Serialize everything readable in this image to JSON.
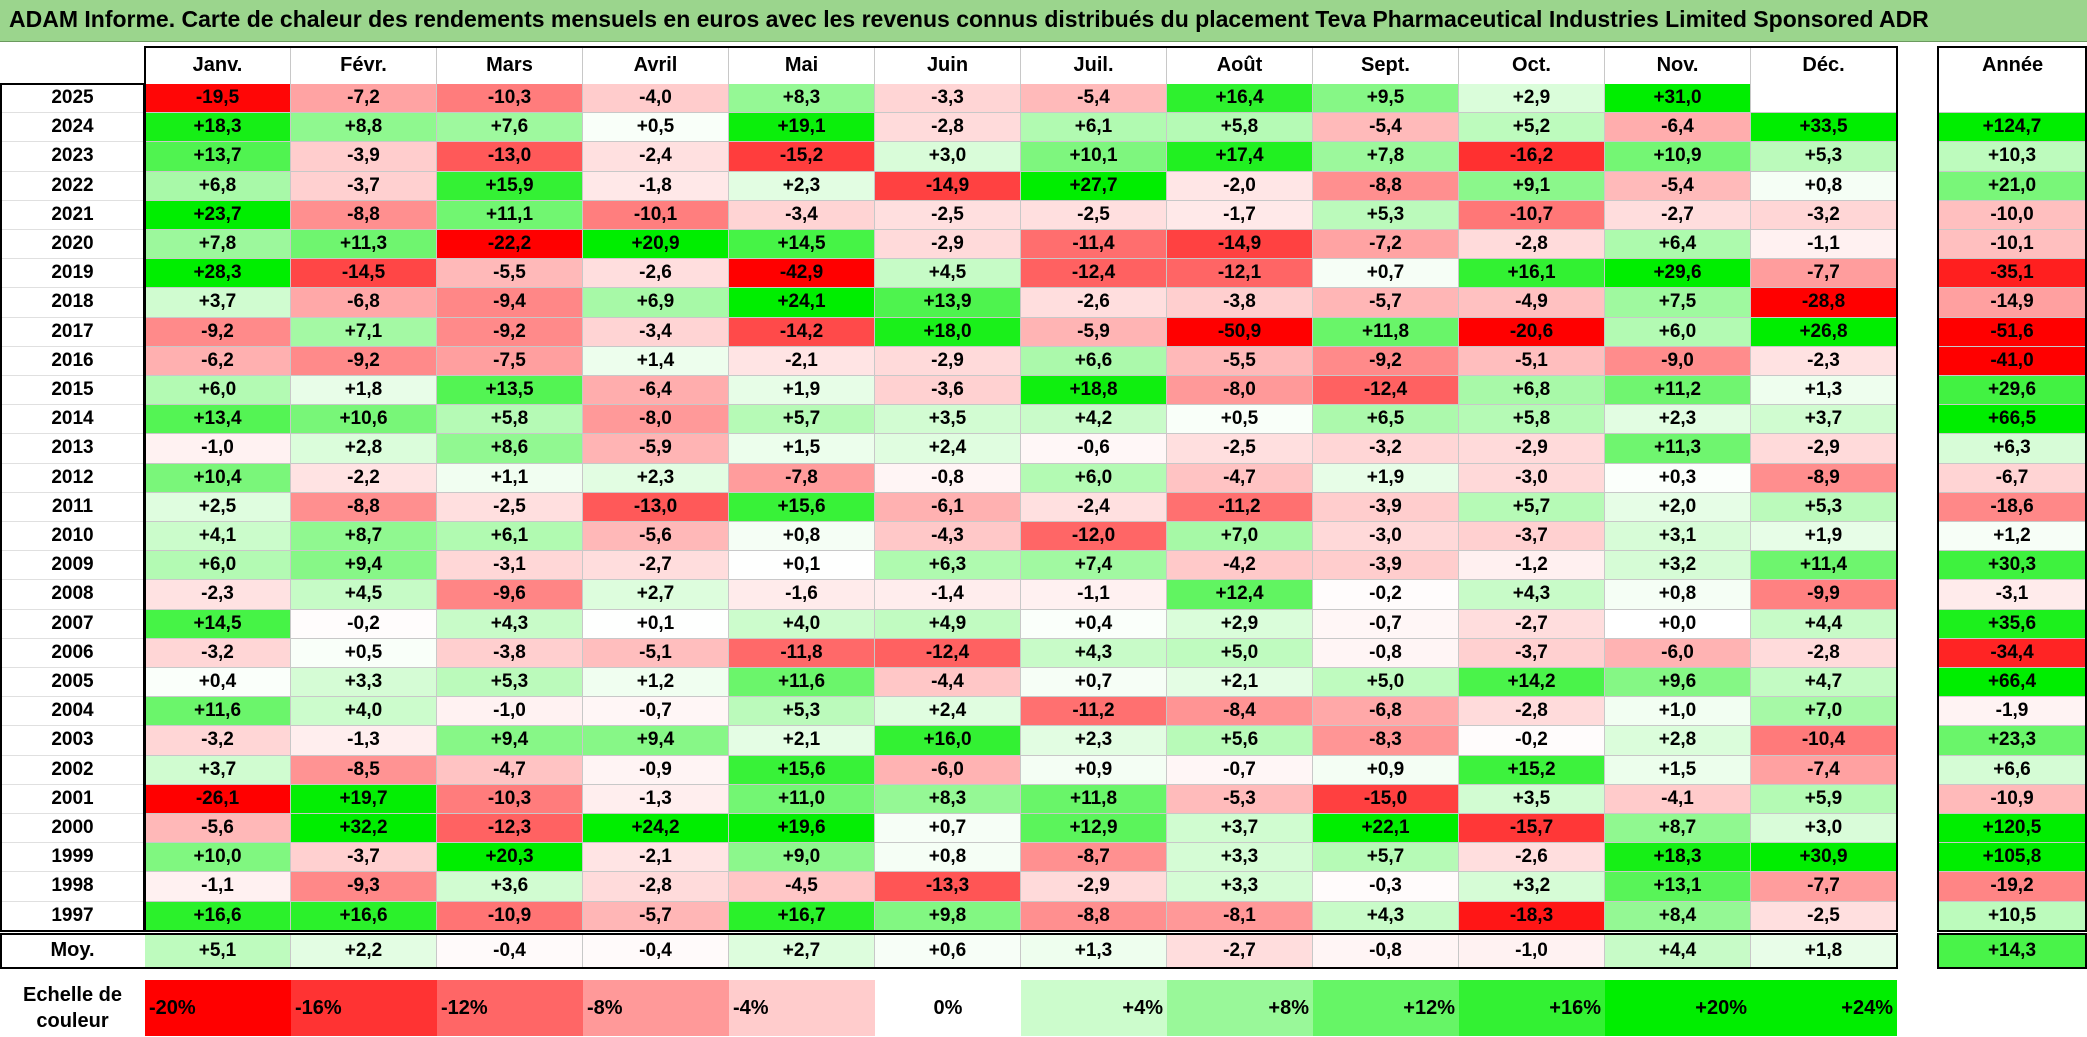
{
  "title": "ADAM Informe. Carte de chaleur des rendements mensuels en euros avec les revenus connus distribués du placement Teva Pharmaceutical Industries Limited Sponsored ADR",
  "chart_data": {
    "type": "heatmap",
    "months": [
      "Janv.",
      "Févr.",
      "Mars",
      "Avril",
      "Mai",
      "Juin",
      "Juil.",
      "Août",
      "Sept.",
      "Oct.",
      "Nov.",
      "Déc."
    ],
    "annual_header": "Année",
    "average_label": "Moy.",
    "rows": [
      {
        "year": "2025",
        "values": [
          "-19,5",
          "-7,2",
          "-10,3",
          "-4,0",
          "+8,3",
          "-3,3",
          "-5,4",
          "+16,4",
          "+9,5",
          "+2,9",
          "+31,0",
          ""
        ],
        "annual": ""
      },
      {
        "year": "2024",
        "values": [
          "+18,3",
          "+8,8",
          "+7,6",
          "+0,5",
          "+19,1",
          "-2,8",
          "+6,1",
          "+5,8",
          "-5,4",
          "+5,2",
          "-6,4",
          "+33,5"
        ],
        "annual": "+124,7"
      },
      {
        "year": "2023",
        "values": [
          "+13,7",
          "-3,9",
          "-13,0",
          "-2,4",
          "-15,2",
          "+3,0",
          "+10,1",
          "+17,4",
          "+7,8",
          "-16,2",
          "+10,9",
          "+5,3"
        ],
        "annual": "+10,3"
      },
      {
        "year": "2022",
        "values": [
          "+6,8",
          "-3,7",
          "+15,9",
          "-1,8",
          "+2,3",
          "-14,9",
          "+27,7",
          "-2,0",
          "-8,8",
          "+9,1",
          "-5,4",
          "+0,8"
        ],
        "annual": "+21,0"
      },
      {
        "year": "2021",
        "values": [
          "+23,7",
          "-8,8",
          "+11,1",
          "-10,1",
          "-3,4",
          "-2,5",
          "-2,5",
          "-1,7",
          "+5,3",
          "-10,7",
          "-2,7",
          "-3,2"
        ],
        "annual": "-10,0"
      },
      {
        "year": "2020",
        "values": [
          "+7,8",
          "+11,3",
          "-22,2",
          "+20,9",
          "+14,5",
          "-2,9",
          "-11,4",
          "-14,9",
          "-7,2",
          "-2,8",
          "+6,4",
          "-1,1"
        ],
        "annual": "-10,1"
      },
      {
        "year": "2019",
        "values": [
          "+28,3",
          "-14,5",
          "-5,5",
          "-2,6",
          "-42,9",
          "+4,5",
          "-12,4",
          "-12,1",
          "+0,7",
          "+16,1",
          "+29,6",
          "-7,7"
        ],
        "annual": "-35,1"
      },
      {
        "year": "2018",
        "values": [
          "+3,7",
          "-6,8",
          "-9,4",
          "+6,9",
          "+24,1",
          "+13,9",
          "-2,6",
          "-3,8",
          "-5,7",
          "-4,9",
          "+7,5",
          "-28,8"
        ],
        "annual": "-14,9"
      },
      {
        "year": "2017",
        "values": [
          "-9,2",
          "+7,1",
          "-9,2",
          "-3,4",
          "-14,2",
          "+18,0",
          "-5,9",
          "-50,9",
          "+11,8",
          "-20,6",
          "+6,0",
          "+26,8"
        ],
        "annual": "-51,6"
      },
      {
        "year": "2016",
        "values": [
          "-6,2",
          "-9,2",
          "-7,5",
          "+1,4",
          "-2,1",
          "-2,9",
          "+6,6",
          "-5,5",
          "-9,2",
          "-5,1",
          "-9,0",
          "-2,3"
        ],
        "annual": "-41,0"
      },
      {
        "year": "2015",
        "values": [
          "+6,0",
          "+1,8",
          "+13,5",
          "-6,4",
          "+1,9",
          "-3,6",
          "+18,8",
          "-8,0",
          "-12,4",
          "+6,8",
          "+11,2",
          "+1,3"
        ],
        "annual": "+29,6"
      },
      {
        "year": "2014",
        "values": [
          "+13,4",
          "+10,6",
          "+5,8",
          "-8,0",
          "+5,7",
          "+3,5",
          "+4,2",
          "+0,5",
          "+6,5",
          "+5,8",
          "+2,3",
          "+3,7"
        ],
        "annual": "+66,5"
      },
      {
        "year": "2013",
        "values": [
          "-1,0",
          "+2,8",
          "+8,6",
          "-5,9",
          "+1,5",
          "+2,4",
          "-0,6",
          "-2,5",
          "-3,2",
          "-2,9",
          "+11,3",
          "-2,9"
        ],
        "annual": "+6,3"
      },
      {
        "year": "2012",
        "values": [
          "+10,4",
          "-2,2",
          "+1,1",
          "+2,3",
          "-7,8",
          "-0,8",
          "+6,0",
          "-4,7",
          "+1,9",
          "-3,0",
          "+0,3",
          "-8,9"
        ],
        "annual": "-6,7"
      },
      {
        "year": "2011",
        "values": [
          "+2,5",
          "-8,8",
          "-2,5",
          "-13,0",
          "+15,6",
          "-6,1",
          "-2,4",
          "-11,2",
          "-3,9",
          "+5,7",
          "+2,0",
          "+5,3"
        ],
        "annual": "-18,6"
      },
      {
        "year": "2010",
        "values": [
          "+4,1",
          "+8,7",
          "+6,1",
          "-5,6",
          "+0,8",
          "-4,3",
          "-12,0",
          "+7,0",
          "-3,0",
          "-3,7",
          "+3,1",
          "+1,9"
        ],
        "annual": "+1,2"
      },
      {
        "year": "2009",
        "values": [
          "+6,0",
          "+9,4",
          "-3,1",
          "-2,7",
          "+0,1",
          "+6,3",
          "+7,4",
          "-4,2",
          "-3,9",
          "-1,2",
          "+3,2",
          "+11,4"
        ],
        "annual": "+30,3"
      },
      {
        "year": "2008",
        "values": [
          "-2,3",
          "+4,5",
          "-9,6",
          "+2,7",
          "-1,6",
          "-1,4",
          "-1,1",
          "+12,4",
          "-0,2",
          "+4,3",
          "+0,8",
          "-9,9"
        ],
        "annual": "-3,1"
      },
      {
        "year": "2007",
        "values": [
          "+14,5",
          "-0,2",
          "+4,3",
          "+0,1",
          "+4,0",
          "+4,9",
          "+0,4",
          "+2,9",
          "-0,7",
          "-2,7",
          "+0,0",
          "+4,4"
        ],
        "annual": "+35,6"
      },
      {
        "year": "2006",
        "values": [
          "-3,2",
          "+0,5",
          "-3,8",
          "-5,1",
          "-11,8",
          "-12,4",
          "+4,3",
          "+5,0",
          "-0,8",
          "-3,7",
          "-6,0",
          "-2,8"
        ],
        "annual": "-34,4"
      },
      {
        "year": "2005",
        "values": [
          "+0,4",
          "+3,3",
          "+5,3",
          "+1,2",
          "+11,6",
          "-4,4",
          "+0,7",
          "+2,1",
          "+5,0",
          "+14,2",
          "+9,6",
          "+4,7"
        ],
        "annual": "+66,4"
      },
      {
        "year": "2004",
        "values": [
          "+11,6",
          "+4,0",
          "-1,0",
          "-0,7",
          "+5,3",
          "+2,4",
          "-11,2",
          "-8,4",
          "-6,8",
          "-2,8",
          "+1,0",
          "+7,0"
        ],
        "annual": "-1,9"
      },
      {
        "year": "2003",
        "values": [
          "-3,2",
          "-1,3",
          "+9,4",
          "+9,4",
          "+2,1",
          "+16,0",
          "+2,3",
          "+5,6",
          "-8,3",
          "-0,2",
          "+2,8",
          "-10,4"
        ],
        "annual": "+23,3"
      },
      {
        "year": "2002",
        "values": [
          "+3,7",
          "-8,5",
          "-4,7",
          "-0,9",
          "+15,6",
          "-6,0",
          "+0,9",
          "-0,7",
          "+0,9",
          "+15,2",
          "+1,5",
          "-7,4"
        ],
        "annual": "+6,6"
      },
      {
        "year": "2001",
        "values": [
          "-26,1",
          "+19,7",
          "-10,3",
          "-1,3",
          "+11,0",
          "+8,3",
          "+11,8",
          "-5,3",
          "-15,0",
          "+3,5",
          "-4,1",
          "+5,9"
        ],
        "annual": "-10,9"
      },
      {
        "year": "2000",
        "values": [
          "-5,6",
          "+32,2",
          "-12,3",
          "+24,2",
          "+19,6",
          "+0,7",
          "+12,9",
          "+3,7",
          "+22,1",
          "-15,7",
          "+8,7",
          "+3,0"
        ],
        "annual": "+120,5"
      },
      {
        "year": "1999",
        "values": [
          "+10,0",
          "-3,7",
          "+20,3",
          "-2,1",
          "+9,0",
          "+0,8",
          "-8,7",
          "+3,3",
          "+5,7",
          "-2,6",
          "+18,3",
          "+30,9"
        ],
        "annual": "+105,8"
      },
      {
        "year": "1998",
        "values": [
          "-1,1",
          "-9,3",
          "+3,6",
          "-2,8",
          "-4,5",
          "-13,3",
          "-2,9",
          "+3,3",
          "-0,3",
          "+3,2",
          "+13,1",
          "-7,7"
        ],
        "annual": "-19,2"
      },
      {
        "year": "1997",
        "values": [
          "+16,6",
          "+16,6",
          "-10,9",
          "-5,7",
          "+16,7",
          "+9,8",
          "-8,8",
          "-8,1",
          "+4,3",
          "-18,3",
          "+8,4",
          "-2,5"
        ],
        "annual": "+10,5"
      }
    ],
    "averages": [
      "+5,1",
      "+2,2",
      "-0,4",
      "-0,4",
      "+2,7",
      "+0,6",
      "+1,3",
      "-2,7",
      "-0,8",
      "-1,0",
      "+4,4",
      "+1,8"
    ],
    "average_annual": "+14,3",
    "scale": {
      "label": "Echelle de couleur",
      "steps": [
        "-20%",
        "-16%",
        "-12%",
        "-8%",
        "-4%",
        "0%",
        "+4%",
        "+8%",
        "+12%",
        "+16%",
        "+20%",
        "+24%"
      ]
    }
  },
  "colors": {
    "title_bg": "#9bd58d",
    "neg_max": "#ff0000",
    "pos_max": "#00ee00",
    "neutral": "#ffffff"
  }
}
